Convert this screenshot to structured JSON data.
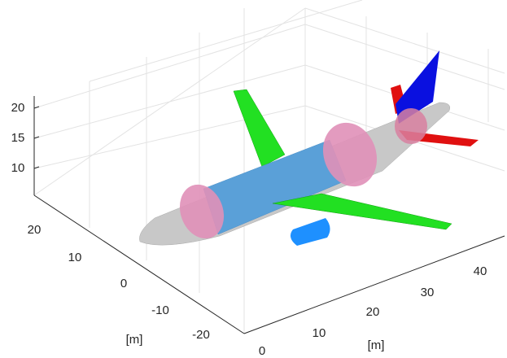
{
  "axes": {
    "z_ticks": [
      10,
      15,
      20
    ],
    "y_ticks": [
      20,
      10,
      0,
      -10,
      -20
    ],
    "x_ticks": [
      0,
      10,
      20,
      30,
      40
    ],
    "y_label": "[m]",
    "x_label": "[m]"
  }
}
